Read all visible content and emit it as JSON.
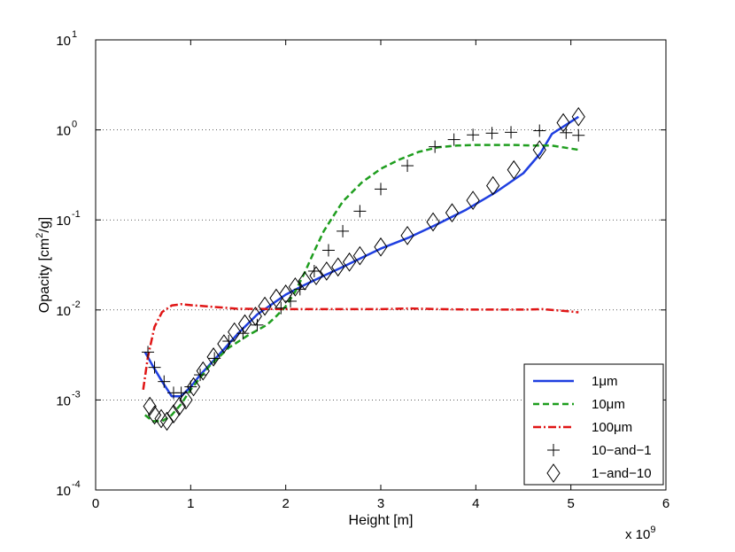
{
  "chart_data": {
    "type": "line",
    "title": "",
    "xlabel": "Height [m]",
    "ylabel_main": "Opacity [cm",
    "ylabel_sup": "2",
    "ylabel_tail": "/g]",
    "x_multiplier_base": "x 10",
    "x_multiplier_exp": "9",
    "xscale": "linear",
    "yscale": "log",
    "xlim": [
      0,
      6
    ],
    "ylim": [
      0.0001,
      10
    ],
    "xticks": [
      0,
      1,
      2,
      3,
      4,
      5,
      6
    ],
    "xtick_labels": [
      "0",
      "1",
      "2",
      "3",
      "4",
      "5",
      "6"
    ],
    "yticks": [
      0.0001,
      0.001,
      0.01,
      0.1,
      1,
      10
    ],
    "ytick_labels": [
      {
        "base": "10",
        "exp": "-4"
      },
      {
        "base": "10",
        "exp": "-3"
      },
      {
        "base": "10",
        "exp": "-2"
      },
      {
        "base": "10",
        "exp": "-1"
      },
      {
        "base": "10",
        "exp": "0"
      },
      {
        "base": "10",
        "exp": "1"
      }
    ],
    "grid": "y-dotted",
    "legend_position": "bottom-right",
    "series": [
      {
        "name": "1μm",
        "legend_label": "1μm",
        "style": "solid",
        "color": "#1f3fe0",
        "marker": "none",
        "x": [
          0.52,
          0.6,
          0.7,
          0.8,
          0.9,
          1.0,
          1.1,
          1.3,
          1.5,
          1.7,
          1.9,
          2.0,
          2.2,
          2.4,
          2.6,
          2.8,
          3.0,
          3.3,
          3.6,
          3.9,
          4.2,
          4.5,
          4.68,
          4.8,
          5.08
        ],
        "y": [
          0.0034,
          0.0024,
          0.0016,
          0.0011,
          0.0011,
          0.0014,
          0.0019,
          0.0032,
          0.0055,
          0.0089,
          0.0125,
          0.0148,
          0.019,
          0.024,
          0.03,
          0.038,
          0.048,
          0.064,
          0.09,
          0.13,
          0.2,
          0.33,
          0.55,
          0.9,
          1.4
        ]
      },
      {
        "name": "10μm",
        "legend_label": "10μm",
        "style": "dashed",
        "color": "#1f9e1f",
        "marker": "none",
        "x": [
          0.52,
          0.6,
          0.7,
          0.8,
          0.9,
          1.0,
          1.2,
          1.4,
          1.6,
          1.8,
          1.9,
          2.0,
          2.1,
          2.2,
          2.3,
          2.4,
          2.5,
          2.6,
          2.8,
          3.0,
          3.2,
          3.4,
          3.6,
          3.8,
          4.0,
          4.2,
          4.4,
          4.6,
          4.8,
          5.0,
          5.08
        ],
        "y": [
          0.00068,
          0.00058,
          0.00058,
          0.00068,
          0.0009,
          0.0013,
          0.0024,
          0.0038,
          0.0052,
          0.0068,
          0.0085,
          0.011,
          0.016,
          0.026,
          0.045,
          0.075,
          0.11,
          0.16,
          0.26,
          0.37,
          0.47,
          0.57,
          0.64,
          0.67,
          0.68,
          0.68,
          0.68,
          0.67,
          0.67,
          0.62,
          0.6
        ]
      },
      {
        "name": "100μm",
        "legend_label": "100μm",
        "style": "dashdot",
        "color": "#e01515",
        "marker": "none",
        "x": [
          0.5,
          0.55,
          0.62,
          0.7,
          0.8,
          0.9,
          1.0,
          1.2,
          1.5,
          2.0,
          2.5,
          3.0,
          3.3,
          3.6,
          4.0,
          4.5,
          4.7,
          5.0,
          5.08
        ],
        "y": [
          0.0013,
          0.003,
          0.0065,
          0.0095,
          0.0112,
          0.0116,
          0.0113,
          0.0109,
          0.0103,
          0.0102,
          0.0102,
          0.0102,
          0.0104,
          0.0102,
          0.0101,
          0.0101,
          0.0102,
          0.0096,
          0.0094
        ]
      },
      {
        "name": "10-and-1",
        "legend_label": "10−and−1",
        "style": "none",
        "color": "#000000",
        "marker": "plus",
        "x": [
          0.55,
          0.62,
          0.72,
          0.82,
          0.9,
          1.0,
          1.1,
          1.25,
          1.4,
          1.55,
          1.7,
          1.95,
          2.05,
          2.15,
          2.3,
          2.45,
          2.6,
          2.78,
          3.0,
          3.28,
          3.57,
          3.77,
          3.97,
          4.17,
          4.37,
          4.67,
          4.95,
          5.08
        ],
        "y": [
          0.0034,
          0.0023,
          0.0016,
          0.0012,
          0.0012,
          0.0014,
          0.0019,
          0.0029,
          0.0045,
          0.0055,
          0.0068,
          0.0105,
          0.0125,
          0.017,
          0.027,
          0.046,
          0.075,
          0.125,
          0.22,
          0.4,
          0.65,
          0.78,
          0.88,
          0.92,
          0.94,
          0.98,
          0.93,
          0.87
        ]
      },
      {
        "name": "1-and-10",
        "legend_label": "1−and−10",
        "style": "none",
        "color": "#000000",
        "marker": "diamond",
        "x": [
          0.57,
          0.62,
          0.69,
          0.75,
          0.82,
          0.88,
          0.95,
          1.03,
          1.13,
          1.24,
          1.35,
          1.46,
          1.57,
          1.68,
          1.78,
          1.9,
          2.0,
          2.1,
          2.2,
          2.32,
          2.43,
          2.55,
          2.67,
          2.78,
          3.0,
          3.28,
          3.55,
          3.75,
          3.97,
          4.18,
          4.4,
          4.67,
          4.92,
          5.08
        ],
        "y": [
          0.00085,
          0.00068,
          0.00062,
          0.00058,
          0.0007,
          0.00085,
          0.001,
          0.0014,
          0.0021,
          0.003,
          0.0042,
          0.0057,
          0.007,
          0.0085,
          0.011,
          0.0135,
          0.015,
          0.018,
          0.021,
          0.024,
          0.027,
          0.03,
          0.034,
          0.04,
          0.05,
          0.067,
          0.095,
          0.12,
          0.165,
          0.24,
          0.36,
          0.6,
          1.2,
          1.4
        ]
      }
    ]
  }
}
